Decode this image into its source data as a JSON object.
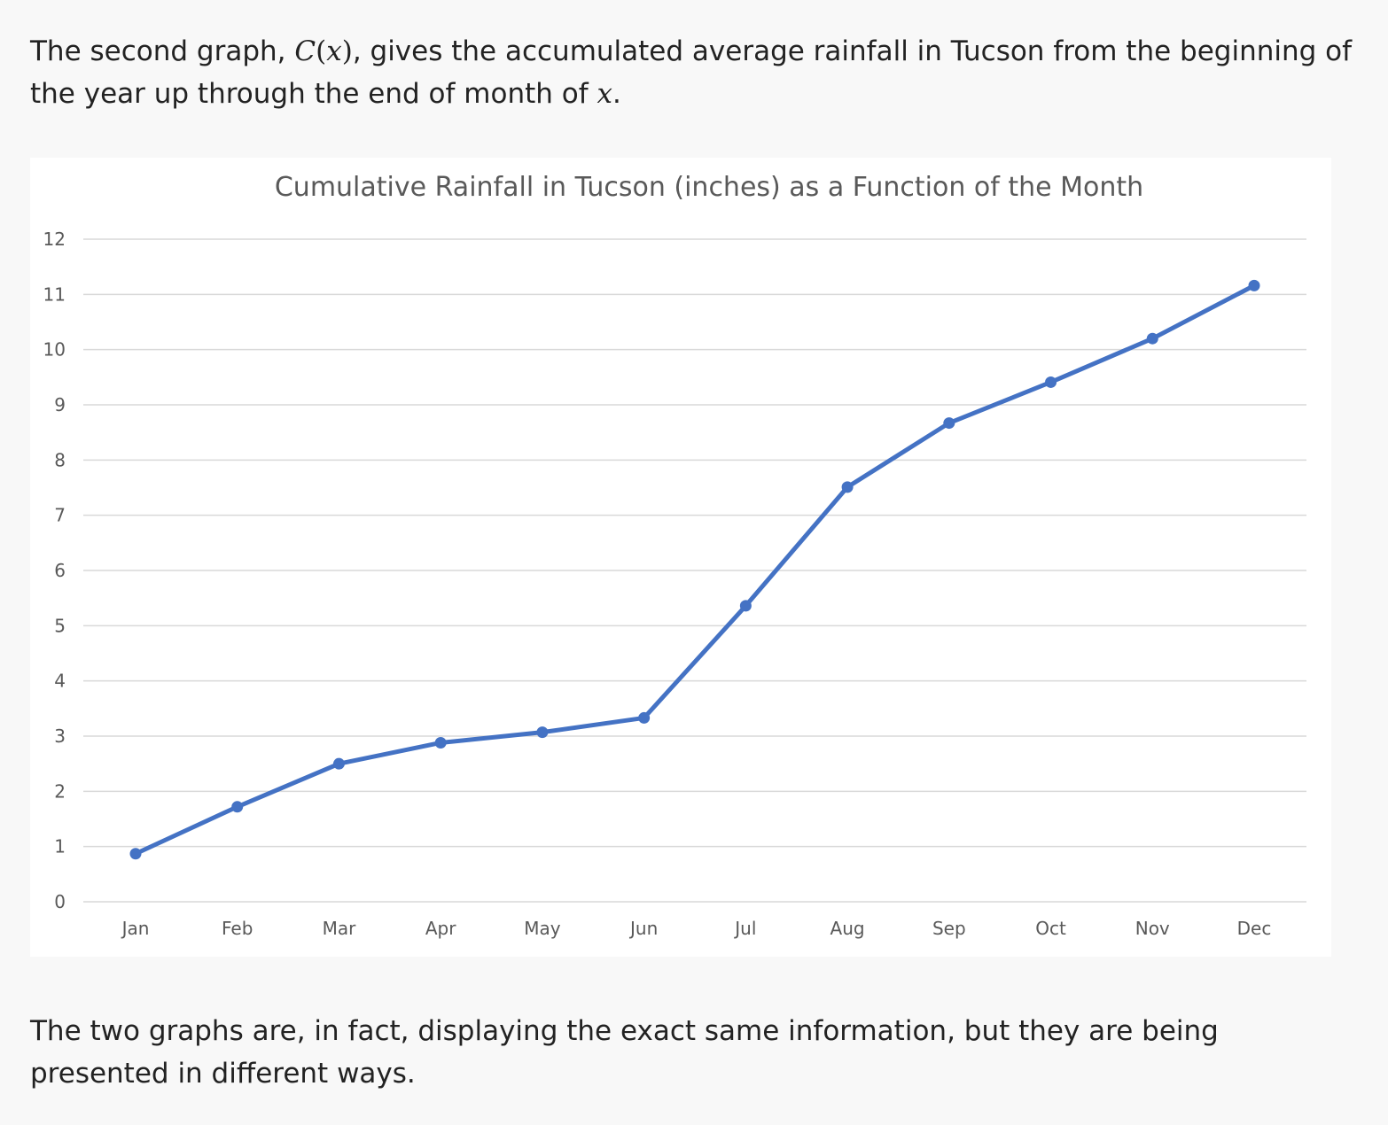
{
  "intro": {
    "before": "The second graph, ",
    "func_c": "C",
    "paren_open": "(",
    "func_x": "x",
    "paren_close": ")",
    "middle": ", gives the accumulated average rainfall in Tucson from the beginning of the year up through the end of month of ",
    "var_x": "x",
    "end": "."
  },
  "outro": {
    "text": "The two graphs are, in fact, displaying the exact same information, but they are being presented in different ways."
  },
  "colors": {
    "series": "#4472c4",
    "grid": "#d9d9d9",
    "text": "#595959"
  },
  "chart_data": {
    "type": "line",
    "title": "Cumulative Rainfall in Tucson (inches) as a Function of the Month",
    "xlabel": "",
    "ylabel": "",
    "categories": [
      "Jan",
      "Feb",
      "Mar",
      "Apr",
      "May",
      "Jun",
      "Jul",
      "Aug",
      "Sep",
      "Oct",
      "Nov",
      "Dec"
    ],
    "values": [
      0.87,
      1.72,
      2.5,
      2.88,
      3.07,
      3.33,
      5.36,
      7.51,
      8.67,
      9.41,
      10.2,
      11.16
    ],
    "ylim": [
      0,
      12
    ],
    "yticks": [
      "0",
      "1",
      "2",
      "3",
      "4",
      "5",
      "6",
      "7",
      "8",
      "9",
      "10",
      "11",
      "12"
    ],
    "grid": true,
    "legend": "none",
    "markers": true
  }
}
